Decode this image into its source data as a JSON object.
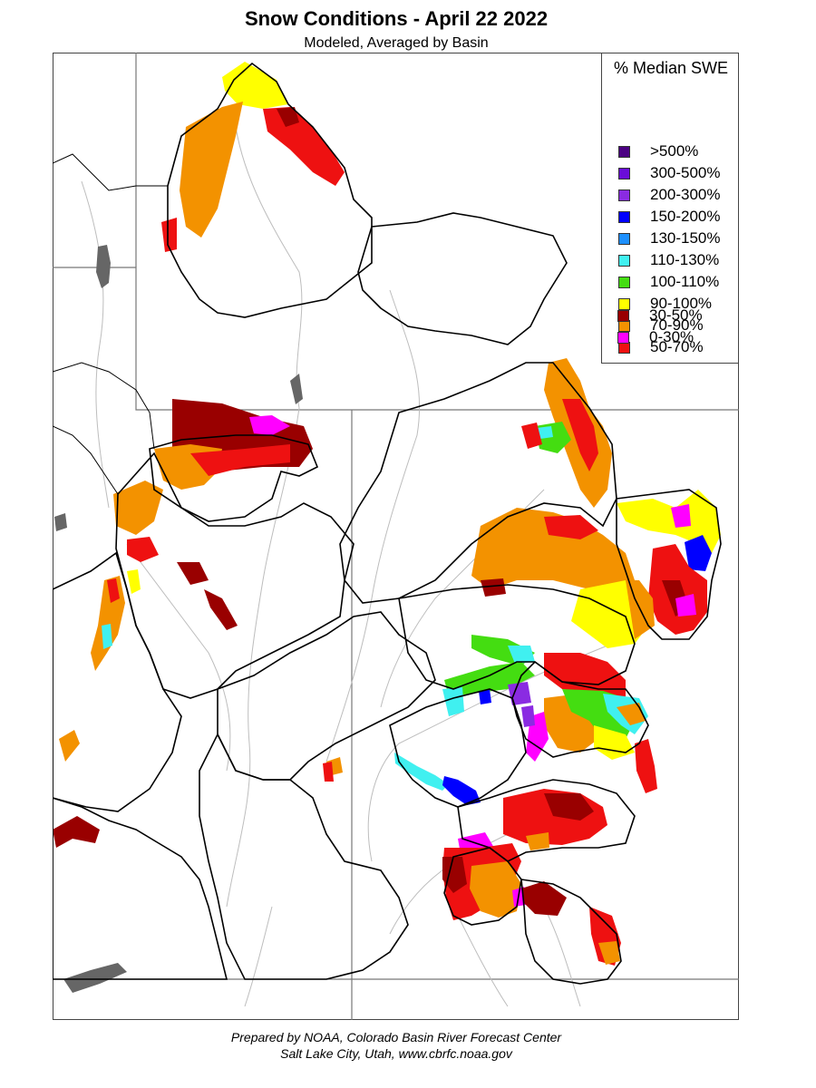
{
  "title": "Snow Conditions - April 22 2022",
  "subtitle": "Modeled, Averaged by Basin",
  "legend": {
    "title": "% Median SWE",
    "items": [
      {
        "label": ">500%",
        "color": "#4b0082"
      },
      {
        "label": "300-500%",
        "color": "#6a0dd8"
      },
      {
        "label": "200-300%",
        "color": "#8a2be2"
      },
      {
        "label": "150-200%",
        "color": "#0000ff"
      },
      {
        "label": "130-150%",
        "color": "#1e90ff"
      },
      {
        "label": "110-130%",
        "color": "#40f0f0"
      },
      {
        "label": "100-110%",
        "color": "#44dd11"
      },
      {
        "label": "90-100%",
        "color": "#ffff00"
      },
      {
        "label": "70-90%",
        "color": "#f39200"
      },
      {
        "label": "50-70%",
        "color": "#ee1111"
      },
      {
        "label": "30-50%",
        "color": "#990000"
      },
      {
        "label": "0-30%",
        "color": "#ff00ff"
      }
    ]
  },
  "footer": {
    "line1": "Prepared by NOAA, Colorado Basin River Forecast Center",
    "line2": "Salt Lake City, Utah, www.cbrfc.noaa.gov"
  },
  "map_colors": {
    "basin_outline": "#000000",
    "state_line": "#777777",
    "river": "#b8b8b8",
    "lake": "#666666"
  }
}
